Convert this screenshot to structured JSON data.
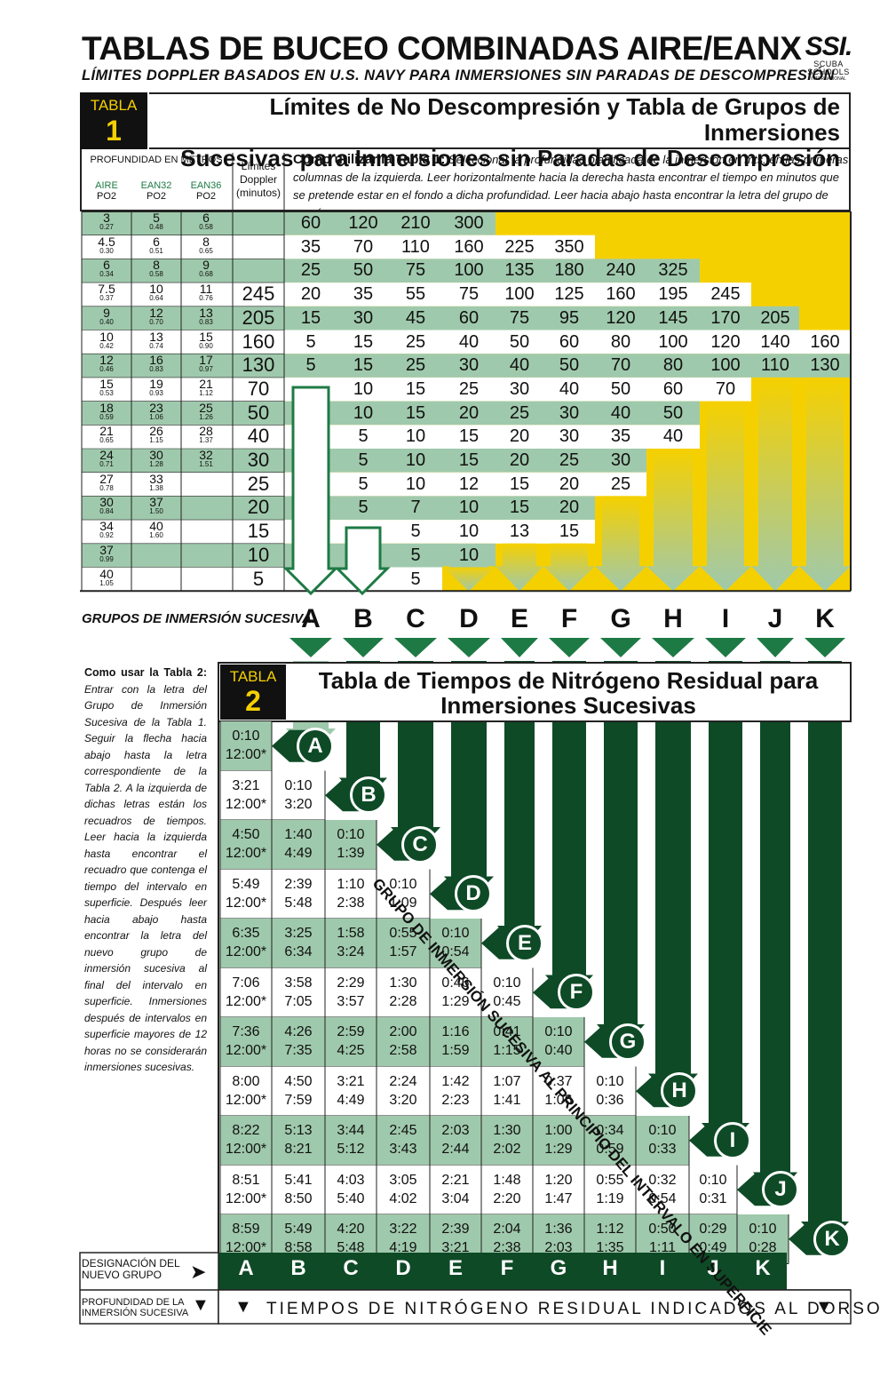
{
  "header": {
    "title": "TABLAS DE BUCEO COMBINADAS AIRE/EANX",
    "subtitle": "LÍMITES DOPPLER BASADOS EN U.S. NAVY PARA INMERSIONES SIN PARADAS DE DESCOMPRESIÓN",
    "logo": {
      "mark": "SSI.",
      "line1": "SCUBA",
      "line2": "SCHOOLS",
      "line3": "INTERNATIONAL"
    }
  },
  "colors": {
    "green_dark": "#0e4a26",
    "green_mid": "#1e7a45",
    "green_light": "#9fc9ac",
    "yellow": "#f5d000",
    "black": "#111111"
  },
  "table1": {
    "label": "TABLA",
    "number": "1",
    "title_line1": "Límites de No Descompresión y Tabla de Grupos de Inmersiones",
    "title_line2": "Sucesivas para Inmersiones sin Paradas de Descompresión",
    "depth_header": "PROFUNDIDAD EN METROS",
    "col_air": "AIRE",
    "col_ean32": "EAN32",
    "col_ean36": "EAN36",
    "po2": "PO2",
    "doppler_header": "Límites Doppler (minutos)",
    "how_bold": "Como utilizar la Tabla 1:",
    "how_text": "Seleccionar la profundidad planificada de la inmersión en mts. en las primeras columnas de la izquierda. Leer horizontalmente hacia la derecha hasta encontrar el tiempo en minutos que se pretende estar en el fondo a dicha profundidad. Leer hacia abajo hasta encontrar la letra del grupo de presón.",
    "rows": [
      {
        "air": "3",
        "air_po2": "0.27",
        "e32": "5",
        "e32_po2": "0.48",
        "e36": "6",
        "e36_po2": "0.58",
        "dop": "",
        "times": [
          "60",
          "120",
          "210",
          "300"
        ]
      },
      {
        "air": "4.5",
        "air_po2": "0.30",
        "e32": "6",
        "e32_po2": "0.51",
        "e36": "8",
        "e36_po2": "0.65",
        "dop": "",
        "times": [
          "35",
          "70",
          "110",
          "160",
          "225",
          "350"
        ]
      },
      {
        "air": "6",
        "air_po2": "0.34",
        "e32": "8",
        "e32_po2": "0.58",
        "e36": "9",
        "e36_po2": "0.68",
        "dop": "",
        "times": [
          "25",
          "50",
          "75",
          "100",
          "135",
          "180",
          "240",
          "325"
        ]
      },
      {
        "air": "7.5",
        "air_po2": "0.37",
        "e32": "10",
        "e32_po2": "0.64",
        "e36": "11",
        "e36_po2": "0.76",
        "dop": "245",
        "times": [
          "20",
          "35",
          "55",
          "75",
          "100",
          "125",
          "160",
          "195",
          "245"
        ]
      },
      {
        "air": "9",
        "air_po2": "0.40",
        "e32": "12",
        "e32_po2": "0.70",
        "e36": "13",
        "e36_po2": "0.83",
        "dop": "205",
        "times": [
          "15",
          "30",
          "45",
          "60",
          "75",
          "95",
          "120",
          "145",
          "170",
          "205"
        ]
      },
      {
        "air": "10",
        "air_po2": "0.42",
        "e32": "13",
        "e32_po2": "0.74",
        "e36": "15",
        "e36_po2": "0.90",
        "dop": "160",
        "times": [
          "5",
          "15",
          "25",
          "40",
          "50",
          "60",
          "80",
          "100",
          "120",
          "140",
          "160"
        ]
      },
      {
        "air": "12",
        "air_po2": "0.46",
        "e32": "16",
        "e32_po2": "0.83",
        "e36": "17",
        "e36_po2": "0.97",
        "dop": "130",
        "times": [
          "5",
          "15",
          "25",
          "30",
          "40",
          "50",
          "70",
          "80",
          "100",
          "110",
          "130"
        ]
      },
      {
        "air": "15",
        "air_po2": "0.53",
        "e32": "19",
        "e32_po2": "0.93",
        "e36": "21",
        "e36_po2": "1.12",
        "dop": "70",
        "times": [
          "",
          "10",
          "15",
          "25",
          "30",
          "40",
          "50",
          "60",
          "70"
        ]
      },
      {
        "air": "18",
        "air_po2": "0.59",
        "e32": "23",
        "e32_po2": "1.06",
        "e36": "25",
        "e36_po2": "1.26",
        "dop": "50",
        "times": [
          "",
          "10",
          "15",
          "20",
          "25",
          "30",
          "40",
          "50"
        ]
      },
      {
        "air": "21",
        "air_po2": "0.65",
        "e32": "26",
        "e32_po2": "1.15",
        "e36": "28",
        "e36_po2": "1.37",
        "dop": "40",
        "times": [
          "",
          "5",
          "10",
          "15",
          "20",
          "30",
          "35",
          "40"
        ]
      },
      {
        "air": "24",
        "air_po2": "0.71",
        "e32": "30",
        "e32_po2": "1.28",
        "e36": "32",
        "e36_po2": "1.51",
        "dop": "30",
        "times": [
          "",
          "5",
          "10",
          "15",
          "20",
          "25",
          "30"
        ]
      },
      {
        "air": "27",
        "air_po2": "0.78",
        "e32": "33",
        "e32_po2": "1.38",
        "e36": "",
        "e36_po2": "",
        "dop": "25",
        "times": [
          "",
          "5",
          "10",
          "12",
          "15",
          "20",
          "25"
        ]
      },
      {
        "air": "30",
        "air_po2": "0.84",
        "e32": "37",
        "e32_po2": "1.50",
        "e36": "",
        "e36_po2": "",
        "dop": "20",
        "times": [
          "",
          "5",
          "7",
          "10",
          "15",
          "20"
        ]
      },
      {
        "air": "34",
        "air_po2": "0.92",
        "e32": "40",
        "e32_po2": "1.60",
        "e36": "",
        "e36_po2": "",
        "dop": "15",
        "times": [
          "",
          "",
          "5",
          "10",
          "13",
          "15"
        ]
      },
      {
        "air": "37",
        "air_po2": "0.99",
        "e32": "",
        "e32_po2": "",
        "e36": "",
        "e36_po2": "",
        "dop": "10",
        "times": [
          "",
          "",
          "5",
          "10"
        ]
      },
      {
        "air": "40",
        "air_po2": "1.05",
        "e32": "",
        "e32_po2": "",
        "e36": "",
        "e36_po2": "",
        "dop": "5",
        "times": [
          "",
          "",
          "5"
        ]
      }
    ],
    "groups_label": "GRUPOS DE INMERSIÓN SUCESIVA:",
    "groups": [
      "A",
      "B",
      "C",
      "D",
      "E",
      "F",
      "G",
      "H",
      "I",
      "J",
      "K"
    ]
  },
  "table2": {
    "label": "TABLA",
    "number": "2",
    "title": "Tabla de Tiempos de Nitrógeno Residual para Inmersiones Sucesivas",
    "how_bold": "Como usar la Tabla 2:",
    "how_text": "Entrar con la letra del Grupo de Inmersión Sucesiva de la Tabla 1. Seguir la flecha hacia abajo hasta la letra correspondiente de la Tabla 2. A la izquierda de dichas letras están los recuadros de tiempos. Leer hacia la izquierda hasta encontrar el recuadro que contenga el tiempo del intervalo en superficie. Después leer hacia abajo hasta encontrar la letra del nuevo grupo de inmersión sucesiva al final del intervalo en superficie. Inmersiones después de intervalos en superficie mayores de 12 horas no se considerarán inmersiones sucesivas.",
    "diagonal": "GRUPO DE INMERSIÓN SUCESIVA AL PRINCIPIO DEL INTERVALO EN SUPERFICIE",
    "rows": [
      {
        "group": "A",
        "cells": [
          [
            "0:10",
            "12:00*"
          ]
        ]
      },
      {
        "group": "B",
        "cells": [
          [
            "3:21",
            "12:00*"
          ],
          [
            "0:10",
            "3:20"
          ]
        ]
      },
      {
        "group": "C",
        "cells": [
          [
            "4:50",
            "12:00*"
          ],
          [
            "1:40",
            "4:49"
          ],
          [
            "0:10",
            "1:39"
          ]
        ]
      },
      {
        "group": "D",
        "cells": [
          [
            "5:49",
            "12:00*"
          ],
          [
            "2:39",
            "5:48"
          ],
          [
            "1:10",
            "2:38"
          ],
          [
            "0:10",
            "1:09"
          ]
        ]
      },
      {
        "group": "E",
        "cells": [
          [
            "6:35",
            "12:00*"
          ],
          [
            "3:25",
            "6:34"
          ],
          [
            "1:58",
            "3:24"
          ],
          [
            "0:55",
            "1:57"
          ],
          [
            "0:10",
            "0:54"
          ]
        ]
      },
      {
        "group": "F",
        "cells": [
          [
            "7:06",
            "12:00*"
          ],
          [
            "3:58",
            "7:05"
          ],
          [
            "2:29",
            "3:57"
          ],
          [
            "1:30",
            "2:28"
          ],
          [
            "0:46",
            "1:29"
          ],
          [
            "0:10",
            "0:45"
          ]
        ]
      },
      {
        "group": "G",
        "cells": [
          [
            "7:36",
            "12:00*"
          ],
          [
            "4:26",
            "7:35"
          ],
          [
            "2:59",
            "4:25"
          ],
          [
            "2:00",
            "2:58"
          ],
          [
            "1:16",
            "1:59"
          ],
          [
            "0:41",
            "1:15"
          ],
          [
            "0:10",
            "0:40"
          ]
        ]
      },
      {
        "group": "H",
        "cells": [
          [
            "8:00",
            "12:00*"
          ],
          [
            "4:50",
            "7:59"
          ],
          [
            "3:21",
            "4:49"
          ],
          [
            "2:24",
            "3:20"
          ],
          [
            "1:42",
            "2:23"
          ],
          [
            "1:07",
            "1:41"
          ],
          [
            "0:37",
            "1:06"
          ],
          [
            "0:10",
            "0:36"
          ]
        ]
      },
      {
        "group": "I",
        "cells": [
          [
            "8:22",
            "12:00*"
          ],
          [
            "5:13",
            "8:21"
          ],
          [
            "3:44",
            "5:12"
          ],
          [
            "2:45",
            "3:43"
          ],
          [
            "2:03",
            "2:44"
          ],
          [
            "1:30",
            "2:02"
          ],
          [
            "1:00",
            "1:29"
          ],
          [
            "0:34",
            "0:59"
          ],
          [
            "0:10",
            "0:33"
          ]
        ]
      },
      {
        "group": "J",
        "cells": [
          [
            "8:51",
            "12:00*"
          ],
          [
            "5:41",
            "8:50"
          ],
          [
            "4:03",
            "5:40"
          ],
          [
            "3:05",
            "4:02"
          ],
          [
            "2:21",
            "3:04"
          ],
          [
            "1:48",
            "2:20"
          ],
          [
            "1:20",
            "1:47"
          ],
          [
            "0:55",
            "1:19"
          ],
          [
            "0:32",
            "0:54"
          ],
          [
            "0:10",
            "0:31"
          ]
        ]
      },
      {
        "group": "K",
        "cells": [
          [
            "8:59",
            "12:00*"
          ],
          [
            "5:49",
            "8:58"
          ],
          [
            "4:20",
            "5:48"
          ],
          [
            "3:22",
            "4:19"
          ],
          [
            "2:39",
            "3:21"
          ],
          [
            "2:04",
            "2:38"
          ],
          [
            "1:36",
            "2:03"
          ],
          [
            "1:12",
            "1:35"
          ],
          [
            "0:50",
            "1:11"
          ],
          [
            "0:29",
            "0:49"
          ],
          [
            "0:10",
            "0:28"
          ]
        ]
      }
    ],
    "new_group_label_line1": "DESIGNACIÓN DEL",
    "new_group_label_line2": "NUEVO GRUPO",
    "depth_label_line1": "PROFUNDIDAD DE LA",
    "depth_label_line2": "INMERSIÓN SUCESIVA",
    "footer_text": "TIEMPOS DE NITRÓGENO RESIDUAL INDICADOS AL DORSO"
  }
}
